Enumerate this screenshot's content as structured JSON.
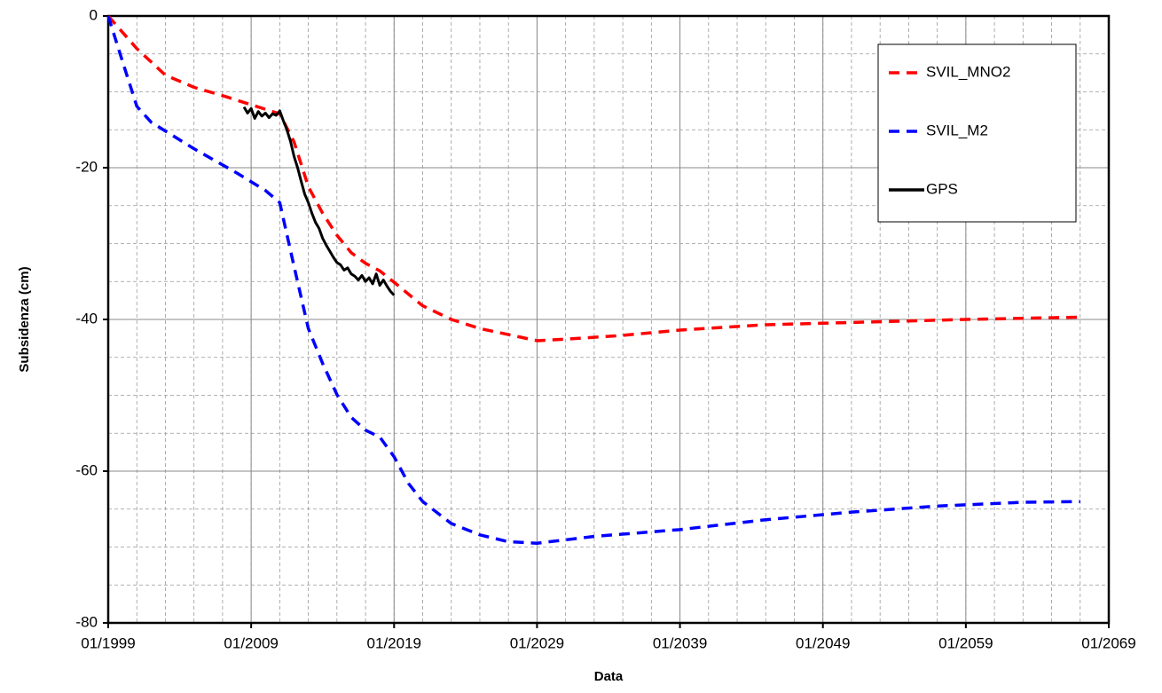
{
  "chart_data": {
    "type": "line",
    "x_label": "Data",
    "y_label": "Subsidenza (cm)",
    "xlim": [
      "01/1999",
      "01/2069"
    ],
    "xticks": [
      "01/1999",
      "01/2009",
      "01/2019",
      "01/2029",
      "01/2039",
      "01/2049",
      "01/2059",
      "01/2069"
    ],
    "ylim": [
      -80,
      0
    ],
    "yticks": [
      0,
      -20,
      -40,
      -60,
      -80
    ],
    "grid": true,
    "legend": "top-right",
    "series": [
      {
        "name": "SVIL_MNO2",
        "color": "#ff0000",
        "style": "dashed",
        "x": [
          "01/1999",
          "01/2001",
          "01/2003",
          "01/2005",
          "01/2007",
          "01/2009",
          "01/2011",
          "01/2012",
          "01/2013",
          "01/2014",
          "01/2015",
          "01/2016",
          "01/2017",
          "01/2018",
          "01/2019",
          "01/2021",
          "01/2023",
          "01/2025",
          "01/2027",
          "01/2029",
          "01/2031",
          "01/2035",
          "01/2039",
          "01/2045",
          "01/2049",
          "01/2055",
          "01/2059",
          "01/2067"
        ],
        "values": [
          0,
          -4.3,
          -7.8,
          -9.4,
          -10.5,
          -11.7,
          -12.9,
          -16.6,
          -22.5,
          -26,
          -28.9,
          -31.2,
          -32.6,
          -33.6,
          -35.1,
          -38.2,
          -40,
          -41.2,
          -42,
          -42.8,
          -42.6,
          -42.1,
          -41.4,
          -40.7,
          -40.5,
          -40.2,
          -40,
          -39.7
        ]
      },
      {
        "name": "SVIL_M2",
        "color": "#0000ff",
        "style": "dashed",
        "x": [
          "01/1999",
          "01/2000",
          "01/2001",
          "01/2002",
          "01/2005",
          "01/2008",
          "01/2010",
          "01/2011",
          "01/2012",
          "01/2013",
          "01/2014",
          "01/2015",
          "01/2016",
          "01/2017",
          "01/2018",
          "01/2019",
          "01/2020",
          "01/2021",
          "01/2023",
          "01/2025",
          "01/2027",
          "01/2029",
          "01/2033",
          "01/2039",
          "01/2045",
          "01/2051",
          "01/2057",
          "01/2063",
          "01/2067"
        ],
        "values": [
          0,
          -6,
          -11.9,
          -14,
          -17.5,
          -20.7,
          -23,
          -24.6,
          -33,
          -41.2,
          -45.8,
          -49.9,
          -52.9,
          -54.6,
          -55.5,
          -58.1,
          -61.6,
          -64,
          -66.9,
          -68.4,
          -69.3,
          -69.5,
          -68.6,
          -67.7,
          -66.4,
          -65.4,
          -64.6,
          -64.1,
          -64
        ]
      },
      {
        "name": "GPS",
        "color": "#000000",
        "style": "solid",
        "x": [
          "07/2008",
          "10/2008",
          "01/2009",
          "04/2009",
          "07/2009",
          "10/2009",
          "01/2010",
          "04/2010",
          "07/2010",
          "10/2010",
          "01/2011",
          "04/2011",
          "07/2011",
          "10/2011",
          "01/2012",
          "04/2012",
          "07/2012",
          "10/2012",
          "01/2013",
          "04/2013",
          "07/2013",
          "10/2013",
          "01/2014",
          "04/2014",
          "07/2014",
          "10/2014",
          "01/2015",
          "04/2015",
          "07/2015",
          "10/2015",
          "01/2016",
          "04/2016",
          "07/2016",
          "10/2016",
          "01/2017",
          "04/2017",
          "07/2017",
          "10/2017",
          "01/2018",
          "04/2018",
          "07/2018",
          "10/2018",
          "01/2019"
        ],
        "values": [
          -12,
          -12.8,
          -12.2,
          -13.5,
          -12.6,
          -13.2,
          -12.8,
          -13.4,
          -12.9,
          -13.1,
          -12.5,
          -13.8,
          -15,
          -16.5,
          -18.5,
          -20,
          -21.8,
          -23.5,
          -24.6,
          -26,
          -27.2,
          -28,
          -29.3,
          -30.2,
          -31,
          -31.8,
          -32.5,
          -32.8,
          -33.5,
          -33.2,
          -34,
          -34.3,
          -34.8,
          -34.2,
          -35,
          -34.5,
          -35.3,
          -34,
          -35.5,
          -34.8,
          -35.6,
          -36.3,
          -36.8
        ]
      }
    ]
  }
}
